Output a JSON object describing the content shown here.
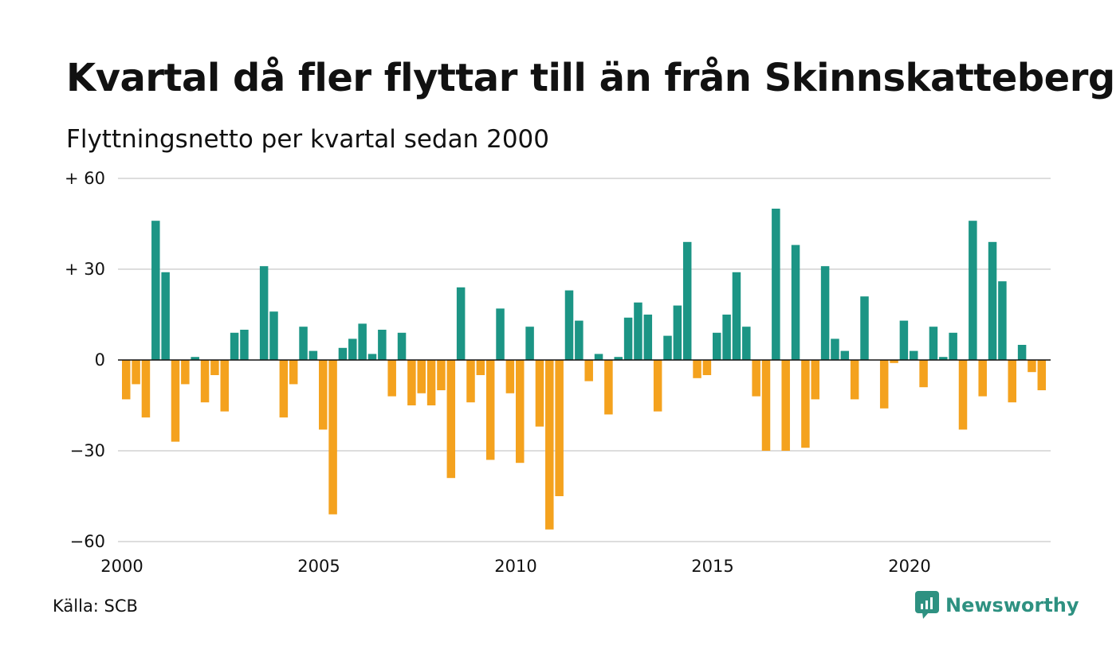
{
  "header": {
    "title": "Kvartal då fler flyttar till än från Skinnskatteberg",
    "subtitle": "Flyttningsnetto per kvartal sedan 2000"
  },
  "footer": {
    "source": "Källa: SCB",
    "brand": "Newsworthy",
    "brand_icon": "newsworthy-logo-icon"
  },
  "colors": {
    "positive": "#1c9585",
    "negative": "#f4a21e",
    "grid": "#dddddd",
    "brand": "#2e9181"
  },
  "chart_data": {
    "type": "bar",
    "title": "Kvartal då fler flyttar till än från Skinnskatteberg",
    "subtitle": "Flyttningsnetto per kvartal sedan 2000",
    "ylim": [
      -60,
      60
    ],
    "yticks": [
      {
        "value": 60,
        "label": "+ 60"
      },
      {
        "value": 30,
        "label": "+ 30"
      },
      {
        "value": 0,
        "label": "0"
      },
      {
        "value": -30,
        "label": "−30"
      },
      {
        "value": -60,
        "label": "−60"
      }
    ],
    "xticks": [
      "2000",
      "2005",
      "2010",
      "2015",
      "2020"
    ],
    "grid": true,
    "start": "2000 Q1",
    "values": [
      -13,
      -8,
      -19,
      46,
      29,
      -27,
      -8,
      1,
      -14,
      -5,
      -17,
      9,
      10,
      0,
      31,
      16,
      -19,
      -8,
      11,
      3,
      -23,
      -51,
      4,
      7,
      12,
      2,
      10,
      -12,
      9,
      -15,
      -11,
      -15,
      -10,
      -39,
      24,
      -14,
      -5,
      -33,
      17,
      -11,
      -34,
      11,
      -22,
      -56,
      -45,
      23,
      13,
      -7,
      2,
      -18,
      1,
      14,
      19,
      15,
      -17,
      8,
      18,
      39,
      -6,
      -5,
      9,
      15,
      29,
      11,
      -12,
      -30,
      50,
      -30,
      38,
      -29,
      -13,
      31,
      7,
      3,
      -13,
      21,
      0,
      -16,
      -1,
      13,
      3,
      -9,
      11,
      1,
      9,
      -23,
      46,
      -12,
      39,
      26,
      -14,
      5,
      -4,
      -10
    ]
  }
}
